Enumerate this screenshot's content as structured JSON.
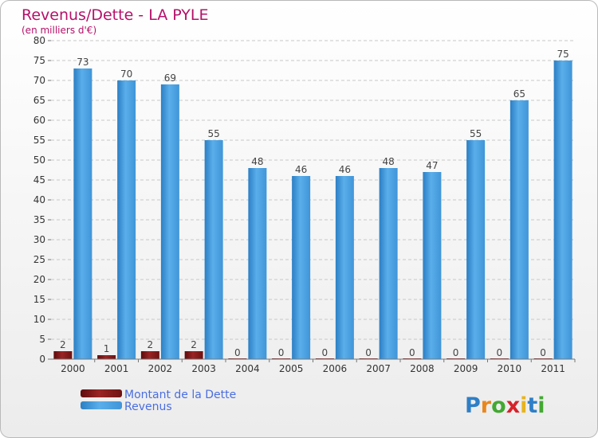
{
  "chart_data": {
    "type": "bar",
    "title": "Revenus/Dette - LA PYLE",
    "subtitle": "(en milliers d'€)",
    "xlabel": "",
    "ylabel": "",
    "ylim": [
      0,
      80
    ],
    "yticks": [
      0,
      5,
      10,
      15,
      20,
      25,
      30,
      35,
      40,
      45,
      50,
      55,
      60,
      65,
      70,
      75,
      80
    ],
    "grid": true,
    "legend_position": "bottom-left",
    "categories": [
      "2000",
      "2001",
      "2002",
      "2003",
      "2004",
      "2005",
      "2006",
      "2007",
      "2008",
      "2009",
      "2010",
      "2011"
    ],
    "series": [
      {
        "name": "Montant de la Dette",
        "color": "#8b1a1a",
        "values": [
          2,
          1,
          2,
          2,
          0,
          0,
          0,
          0,
          0,
          0,
          0,
          0
        ]
      },
      {
        "name": "Revenus",
        "color": "#4aa3e8",
        "values": [
          73,
          70,
          69,
          55,
          48,
          46,
          46,
          48,
          47,
          55,
          65,
          75
        ]
      }
    ]
  },
  "brand": {
    "logo_letters": [
      "P",
      "r",
      "o",
      "x",
      "i",
      "t",
      "i"
    ],
    "logo_colors": [
      "#2e7fc7",
      "#e8871e",
      "#43a832",
      "#d6232a",
      "#e8b41e",
      "#2e7fc7",
      "#43a832"
    ]
  }
}
